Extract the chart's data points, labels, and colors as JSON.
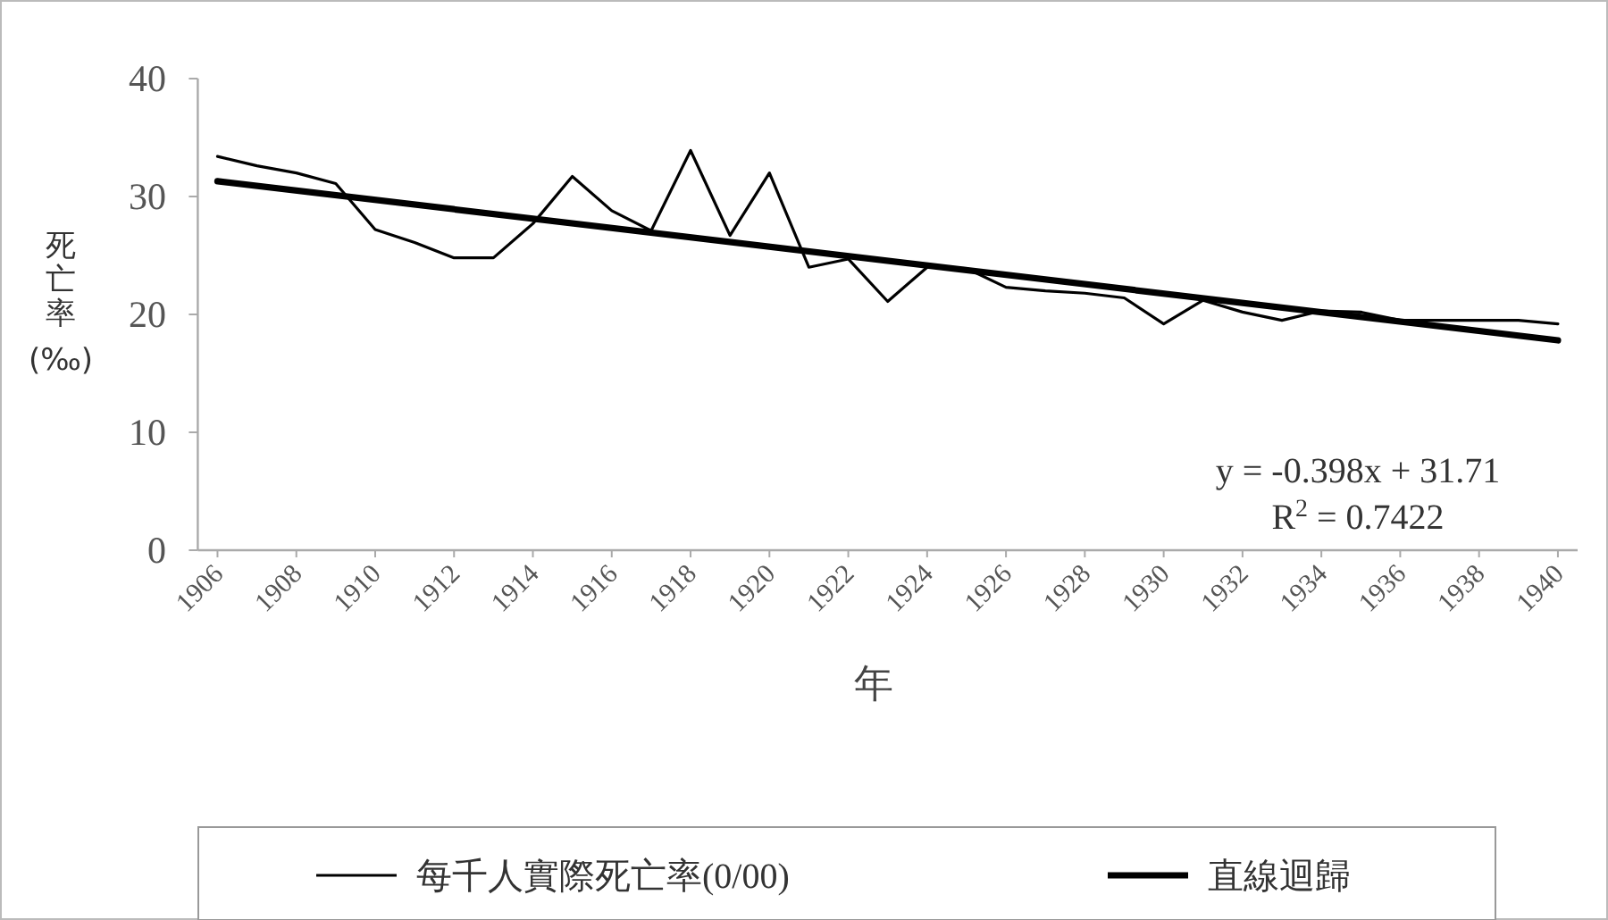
{
  "chart_data": {
    "type": "line",
    "xlabel": "年",
    "ylabel": "死亡率(‰)",
    "x": [
      1906,
      1907,
      1908,
      1909,
      1910,
      1911,
      1912,
      1913,
      1914,
      1915,
      1916,
      1917,
      1918,
      1919,
      1920,
      1921,
      1922,
      1923,
      1924,
      1925,
      1926,
      1927,
      1928,
      1929,
      1930,
      1931,
      1932,
      1933,
      1934,
      1935,
      1936,
      1937,
      1938,
      1939,
      1940
    ],
    "xlim": [
      1905.5,
      1940.5
    ],
    "xticks": [
      1906,
      1908,
      1910,
      1912,
      1914,
      1916,
      1918,
      1920,
      1922,
      1924,
      1926,
      1928,
      1930,
      1932,
      1934,
      1936,
      1938,
      1940
    ],
    "ylim": [
      0,
      40
    ],
    "yticks": [
      0,
      10,
      20,
      30,
      40
    ],
    "series": [
      {
        "name": "每千人實際死亡率(0/00)",
        "color": "#000000",
        "values": [
          33.4,
          32.6,
          32.0,
          31.1,
          27.2,
          26.1,
          24.8,
          24.8,
          27.7,
          31.7,
          28.8,
          27.1,
          33.9,
          26.7,
          32.0,
          24.0,
          24.7,
          21.1,
          24.0,
          23.9,
          22.3,
          22.0,
          21.8,
          21.4,
          19.2,
          21.2,
          20.2,
          19.5,
          20.3,
          20.2,
          19.5,
          19.5,
          19.5,
          19.5,
          19.2
        ]
      },
      {
        "name": "直線迴歸",
        "type": "line",
        "color": "#000000",
        "x": [
          1906,
          1940
        ],
        "values": [
          31.3,
          17.8
        ]
      }
    ],
    "annotations": [
      "y = -0.398x + 31.71",
      "R$^{2}$ = 0.7422"
    ],
    "legend": "bottom",
    "grid": false,
    "marker": "none"
  }
}
